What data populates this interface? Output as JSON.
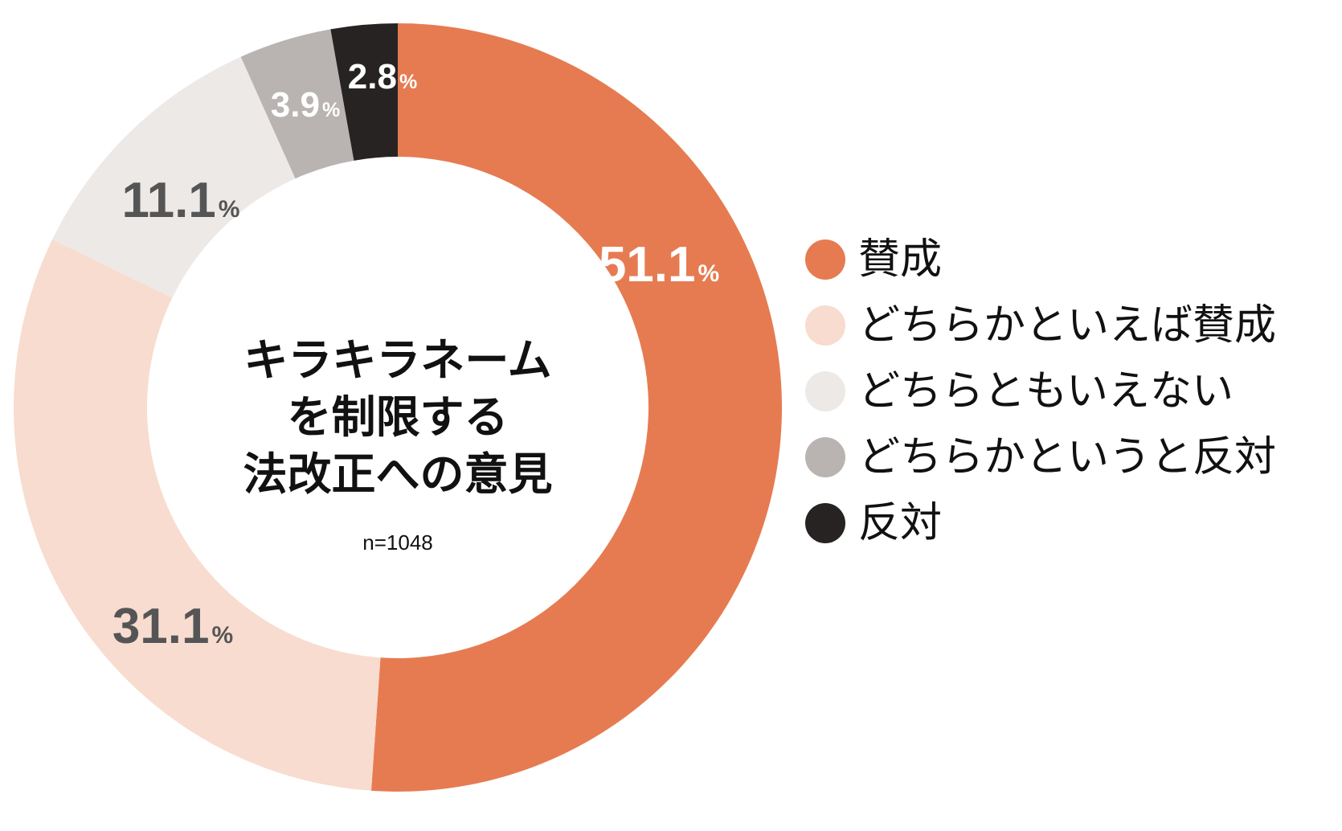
{
  "chart_data": {
    "type": "pie",
    "title_lines": [
      "キラキラネーム",
      "を制限する",
      "法改正への意見"
    ],
    "sample_size": "n=1048",
    "slices": [
      {
        "label": "賛成",
        "value": 51.1,
        "value_text": "51.1",
        "unit": "%",
        "color": "#e67b51",
        "label_color": "#ffffff"
      },
      {
        "label": "どちらかといえば賛成",
        "value": 31.1,
        "value_text": "31.1",
        "unit": "%",
        "color": "#f8dccf",
        "label_color": "#555555"
      },
      {
        "label": "どちらともいえない",
        "value": 11.1,
        "value_text": "11.1",
        "unit": "%",
        "color": "#ede9e6",
        "label_color": "#555555"
      },
      {
        "label": "どちらかというと反対",
        "value": 3.9,
        "value_text": "3.9",
        "unit": "%",
        "color": "#b9b4b1",
        "label_color": "#ffffff"
      },
      {
        "label": "反対",
        "value": 2.8,
        "value_text": "2.8",
        "unit": "%",
        "color": "#262322",
        "label_color": "#ffffff"
      }
    ],
    "legend_position": "right"
  }
}
